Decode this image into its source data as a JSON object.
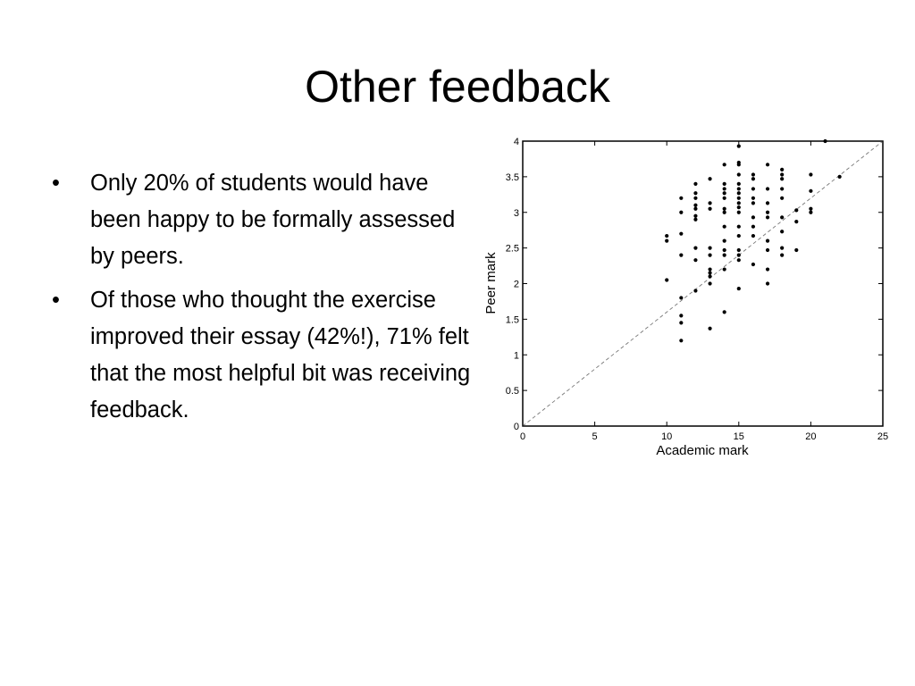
{
  "slide": {
    "title": "Other feedback",
    "bullets": [
      "Only 20% of students would have been happy to be formally assessed by peers.",
      "Of those who thought the exercise improved their essay (42%!), 71% felt that the most helpful bit was receiving feedback."
    ],
    "bullet_glyph": "•"
  },
  "chart_data": {
    "type": "scatter",
    "title": "",
    "xlabel": "Academic mark",
    "ylabel": "Peer mark",
    "xlim": [
      0,
      25
    ],
    "ylim": [
      0,
      4
    ],
    "xticks": [
      0,
      5,
      10,
      15,
      20,
      25
    ],
    "yticks": [
      0,
      0.5,
      1,
      1.5,
      2,
      2.5,
      3,
      3.5,
      4
    ],
    "grid": false,
    "reference_line": {
      "from": [
        0,
        0
      ],
      "to": [
        25,
        4
      ],
      "style": "dashed"
    },
    "points": [
      [
        10,
        2.05
      ],
      [
        10,
        2.6
      ],
      [
        10,
        2.67
      ],
      [
        11,
        1.2
      ],
      [
        11,
        1.45
      ],
      [
        11,
        1.55
      ],
      [
        11,
        1.8
      ],
      [
        11,
        2.4
      ],
      [
        11,
        2.7
      ],
      [
        11,
        3.0
      ],
      [
        11,
        3.2
      ],
      [
        12,
        1.9
      ],
      [
        12,
        2.33
      ],
      [
        12,
        2.5
      ],
      [
        12,
        2.9
      ],
      [
        12,
        2.95
      ],
      [
        12,
        3.05
      ],
      [
        12,
        3.1
      ],
      [
        12,
        3.2
      ],
      [
        12,
        3.27
      ],
      [
        12,
        3.4
      ],
      [
        13,
        1.37
      ],
      [
        13,
        2.0
      ],
      [
        13,
        2.1
      ],
      [
        13,
        2.15
      ],
      [
        13,
        2.2
      ],
      [
        13,
        2.4
      ],
      [
        13,
        2.5
      ],
      [
        13,
        3.05
      ],
      [
        13,
        3.13
      ],
      [
        13,
        3.47
      ],
      [
        14,
        1.6
      ],
      [
        14,
        2.2
      ],
      [
        14,
        2.4
      ],
      [
        14,
        2.47
      ],
      [
        14,
        2.6
      ],
      [
        14,
        2.8
      ],
      [
        14,
        3.0
      ],
      [
        14,
        3.05
      ],
      [
        14,
        3.2
      ],
      [
        14,
        3.27
      ],
      [
        14,
        3.33
      ],
      [
        14,
        3.4
      ],
      [
        14,
        3.67
      ],
      [
        15,
        1.93
      ],
      [
        15,
        2.33
      ],
      [
        15,
        2.4
      ],
      [
        15,
        2.47
      ],
      [
        15,
        2.67
      ],
      [
        15,
        2.8
      ],
      [
        15,
        3.0
      ],
      [
        15,
        3.07
      ],
      [
        15,
        3.13
      ],
      [
        15,
        3.2
      ],
      [
        15,
        3.27
      ],
      [
        15,
        3.33
      ],
      [
        15,
        3.4
      ],
      [
        15,
        3.53
      ],
      [
        15,
        3.67
      ],
      [
        15,
        3.7
      ],
      [
        15,
        3.93
      ],
      [
        16,
        2.27
      ],
      [
        16,
        2.67
      ],
      [
        16,
        2.8
      ],
      [
        16,
        2.93
      ],
      [
        16,
        3.13
      ],
      [
        16,
        3.2
      ],
      [
        16,
        3.33
      ],
      [
        16,
        3.47
      ],
      [
        16,
        3.53
      ],
      [
        17,
        2.0
      ],
      [
        17,
        2.2
      ],
      [
        17,
        2.47
      ],
      [
        17,
        2.6
      ],
      [
        17,
        2.93
      ],
      [
        17,
        3.0
      ],
      [
        17,
        3.13
      ],
      [
        17,
        3.33
      ],
      [
        17,
        3.67
      ],
      [
        18,
        2.4
      ],
      [
        18,
        2.5
      ],
      [
        18,
        2.73
      ],
      [
        18,
        2.93
      ],
      [
        18,
        3.2
      ],
      [
        18,
        3.33
      ],
      [
        18,
        3.47
      ],
      [
        18,
        3.53
      ],
      [
        18,
        3.6
      ],
      [
        19,
        2.47
      ],
      [
        19,
        2.87
      ],
      [
        19,
        3.03
      ],
      [
        20,
        3.0
      ],
      [
        20,
        3.05
      ],
      [
        20,
        3.3
      ],
      [
        20,
        3.53
      ],
      [
        21,
        4.0
      ],
      [
        22,
        3.5
      ]
    ]
  }
}
